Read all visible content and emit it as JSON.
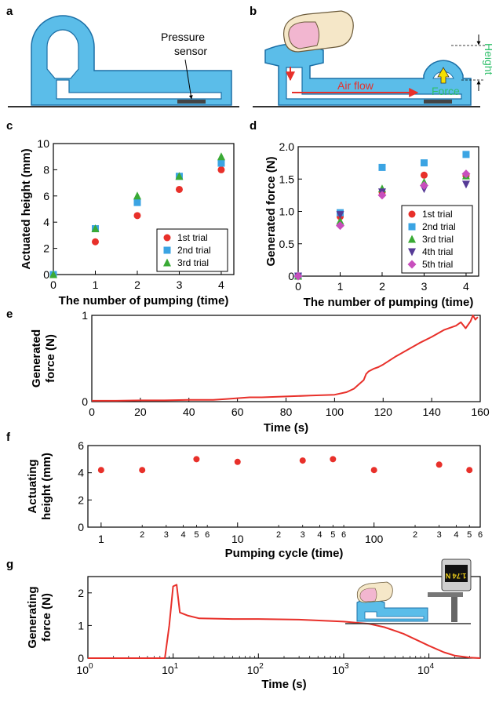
{
  "panel_letters": [
    "a",
    "b",
    "c",
    "d",
    "e",
    "f",
    "g"
  ],
  "diagram_a": {
    "label": "Pressure\nsensor"
  },
  "diagram_b": {
    "airflow_label": "Air flow",
    "force_label": "Force",
    "height_label": "Height"
  },
  "diagram_g": {
    "display_text": "1.74 N"
  },
  "colors": {
    "device_blue": "#5bbde9",
    "device_outline": "#1b6fa6",
    "red": "#e8302a",
    "blue": "#3ba4e3",
    "green": "#3aaa35",
    "purple": "#553a96",
    "magenta": "#c84fbd",
    "line_red": "#e8302a",
    "height_green": "#2fbf6a"
  },
  "chart_data": [
    {
      "panel": "c",
      "type": "scatter",
      "xlabel": "The number of pumping (time)",
      "ylabel": "Actuated height (mm)",
      "xlim": [
        0,
        4.3
      ],
      "ylim": [
        0,
        10
      ],
      "xticks": [
        0,
        1,
        2,
        3,
        4
      ],
      "yticks": [
        0,
        2,
        4,
        6,
        8,
        10
      ],
      "legend_position": "bottom-right",
      "series": [
        {
          "name": "1st trial",
          "marker": "circle",
          "color": "#e8302a",
          "x": [
            0,
            1,
            2,
            3,
            4
          ],
          "y": [
            0,
            2.5,
            4.5,
            6.5,
            8.0
          ]
        },
        {
          "name": "2nd trial",
          "marker": "square",
          "color": "#3ba4e3",
          "x": [
            0,
            1,
            2,
            3,
            4
          ],
          "y": [
            0,
            3.5,
            5.5,
            7.5,
            8.5
          ]
        },
        {
          "name": "3rd trial",
          "marker": "triangle-up",
          "color": "#3aaa35",
          "x": [
            0,
            1,
            2,
            3,
            4
          ],
          "y": [
            0,
            3.5,
            6.0,
            7.5,
            9.0
          ]
        }
      ]
    },
    {
      "panel": "d",
      "type": "scatter",
      "xlabel": "The number of pumping (time)",
      "ylabel": "Generated force (N)",
      "xlim": [
        0,
        4.3
      ],
      "ylim": [
        0,
        2.0
      ],
      "xticks": [
        0,
        1,
        2,
        3,
        4
      ],
      "yticks": [
        0,
        0.5,
        1.0,
        1.5,
        2.0
      ],
      "ytick_labels": [
        "0",
        "0.5",
        "1.0",
        "1.5",
        "2.0"
      ],
      "legend_position": "bottom-right",
      "series": [
        {
          "name": "1st trial",
          "marker": "circle",
          "color": "#e8302a",
          "x": [
            0,
            1,
            2,
            3,
            4
          ],
          "y": [
            0,
            0.92,
            1.3,
            1.56,
            1.55
          ]
        },
        {
          "name": "2nd trial",
          "marker": "square",
          "color": "#3ba4e3",
          "x": [
            0,
            1,
            2,
            3,
            4
          ],
          "y": [
            0,
            0.98,
            1.68,
            1.75,
            1.88
          ]
        },
        {
          "name": "3rd trial",
          "marker": "triangle-up",
          "color": "#3aaa35",
          "x": [
            0,
            1,
            2,
            3,
            4
          ],
          "y": [
            0,
            0.85,
            1.35,
            1.45,
            1.55
          ]
        },
        {
          "name": "4th trial",
          "marker": "triangle-down",
          "color": "#553a96",
          "x": [
            0,
            1,
            2,
            3,
            4
          ],
          "y": [
            0,
            0.95,
            1.3,
            1.35,
            1.42
          ]
        },
        {
          "name": "5th trial",
          "marker": "diamond",
          "color": "#c84fbd",
          "x": [
            0,
            1,
            2,
            3,
            4
          ],
          "y": [
            0,
            0.78,
            1.25,
            1.4,
            1.58
          ]
        }
      ]
    },
    {
      "panel": "e",
      "type": "line",
      "xlabel": "Time (s)",
      "ylabel": "Generated\nforce (N)",
      "xlim": [
        0,
        160
      ],
      "ylim": [
        0,
        1
      ],
      "xticks": [
        0,
        20,
        40,
        60,
        80,
        100,
        120,
        140,
        160
      ],
      "yticks": [
        0,
        1
      ],
      "series": [
        {
          "color": "#e8302a",
          "x": [
            0,
            10,
            20,
            30,
            40,
            50,
            55,
            60,
            65,
            70,
            80,
            90,
            100,
            105,
            108,
            110,
            112,
            113,
            114,
            116,
            118,
            120,
            125,
            130,
            135,
            140,
            145,
            150,
            152,
            154,
            156,
            157,
            158,
            159
          ],
          "y": [
            0.01,
            0.01,
            0.015,
            0.015,
            0.02,
            0.02,
            0.03,
            0.04,
            0.05,
            0.05,
            0.06,
            0.07,
            0.08,
            0.11,
            0.15,
            0.2,
            0.25,
            0.32,
            0.35,
            0.38,
            0.4,
            0.43,
            0.52,
            0.6,
            0.68,
            0.75,
            0.83,
            0.88,
            0.92,
            0.85,
            0.93,
            1.0,
            0.95,
            0.98
          ]
        }
      ]
    },
    {
      "panel": "f",
      "type": "scatter",
      "xscale": "log",
      "xlabel": "Pumping cycle (time)",
      "ylabel": "Actuating\nheight (mm)",
      "xlim": [
        0.8,
        600
      ],
      "ylim": [
        0,
        6
      ],
      "xticks_major": [
        1,
        10,
        100
      ],
      "xticks_minor": [
        2,
        3,
        4,
        5,
        6,
        20,
        30,
        40,
        50,
        60,
        200,
        300,
        400,
        500,
        600
      ],
      "yticks": [
        0,
        2,
        4,
        6
      ],
      "series": [
        {
          "marker": "circle",
          "color": "#e8302a",
          "x": [
            1,
            2,
            5,
            10,
            30,
            50,
            100,
            300,
            500
          ],
          "y": [
            4.2,
            4.2,
            5.0,
            4.8,
            4.9,
            5.0,
            4.2,
            4.6,
            4.2
          ]
        }
      ]
    },
    {
      "panel": "g",
      "type": "line",
      "xscale": "log",
      "xlabel": "Time (s)",
      "ylabel": "Generating\nforce (N)",
      "xlim": [
        1,
        40000
      ],
      "ylim": [
        0,
        2.5
      ],
      "xticks": [
        1,
        10,
        100,
        1000,
        10000
      ],
      "xtick_labels": [
        "10^0",
        "10^1",
        "10^2",
        "10^3",
        "10^4"
      ],
      "yticks": [
        0,
        1,
        2
      ],
      "series": [
        {
          "color": "#e8302a",
          "x": [
            1,
            8,
            9,
            10,
            11,
            12,
            15,
            20,
            50,
            100,
            300,
            1000,
            2000,
            3000,
            5000,
            8000,
            10000,
            15000,
            20000,
            30000,
            40000
          ],
          "y": [
            0,
            0,
            1.0,
            2.2,
            2.25,
            1.4,
            1.3,
            1.22,
            1.2,
            1.2,
            1.18,
            1.12,
            1.05,
            0.95,
            0.75,
            0.5,
            0.38,
            0.18,
            0.08,
            0.02,
            0
          ]
        }
      ]
    }
  ]
}
